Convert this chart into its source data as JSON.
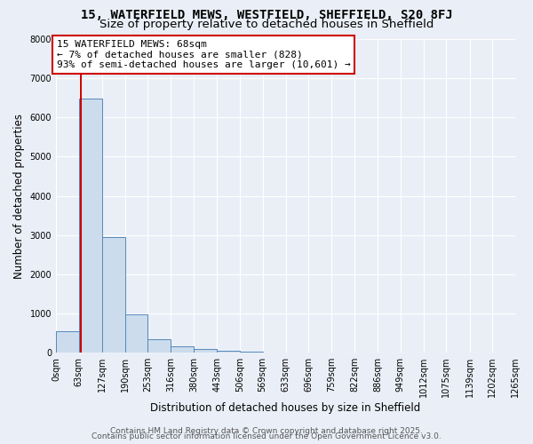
{
  "title1": "15, WATERFIELD MEWS, WESTFIELD, SHEFFIELD, S20 8FJ",
  "title2": "Size of property relative to detached houses in Sheffield",
  "xlabel": "Distribution of detached houses by size in Sheffield",
  "ylabel": "Number of detached properties",
  "bin_edges": [
    0,
    63,
    127,
    190,
    253,
    316,
    380,
    443,
    506,
    569,
    633,
    696,
    759,
    822,
    886,
    949,
    1012,
    1075,
    1139,
    1202,
    1265
  ],
  "bar_heights": [
    550,
    6480,
    2950,
    975,
    340,
    155,
    95,
    55,
    20,
    8,
    4,
    2,
    1,
    1,
    0,
    0,
    0,
    0,
    0,
    0
  ],
  "bar_color": "#ccdcec",
  "bar_edge_color": "#5588bb",
  "property_size": 68,
  "vline_color": "#cc0000",
  "annotation_line1": "15 WATERFIELD MEWS: 68sqm",
  "annotation_line2": "← 7% of detached houses are smaller (828)",
  "annotation_line3": "93% of semi-detached houses are larger (10,601) →",
  "annotation_box_color": "#cc0000",
  "annotation_bg": "#ffffff",
  "ylim": [
    0,
    8000
  ],
  "yticks": [
    0,
    1000,
    2000,
    3000,
    4000,
    5000,
    6000,
    7000,
    8000
  ],
  "footer1": "Contains HM Land Registry data © Crown copyright and database right 2025.",
  "footer2": "Contains public sector information licensed under the Open Government Licence v3.0.",
  "bg_color": "#eaeff7",
  "plot_bg": "#eaeff7",
  "grid_color": "#ffffff",
  "title_fontsize": 10,
  "subtitle_fontsize": 9.5,
  "axis_label_fontsize": 8.5,
  "tick_fontsize": 7,
  "footer_fontsize": 6.5,
  "annotation_fontsize": 8
}
